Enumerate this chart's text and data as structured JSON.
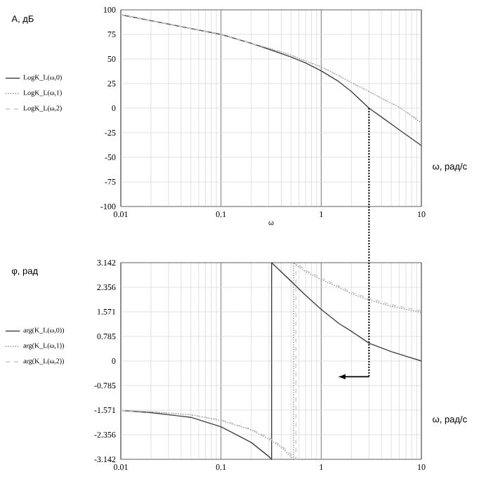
{
  "chart_data": [
    {
      "type": "line",
      "xlabel": "ω",
      "ylabel": "А, дБ",
      "annotations": [
        "ω, рад/с"
      ],
      "log": "x",
      "grid": true,
      "legend": "left",
      "marker": "none",
      "ref_lines": [
        {
          "axis": "x",
          "value": 3,
          "line_style": "dotted",
          "color": "#000000"
        }
      ],
      "xlim": [
        0.01,
        10
      ],
      "xticks": [
        0.01,
        0.1,
        1,
        10
      ],
      "ylim": [
        -100,
        100
      ],
      "yticks": [
        -100,
        -75,
        -50,
        -25,
        0,
        25,
        50,
        75,
        100
      ],
      "series": [
        {
          "name": "LogK_L(ω,0)",
          "color": "#404040",
          "line_style": "solid",
          "x": [
            0.01,
            0.02,
            0.05,
            0.1,
            0.2,
            0.3,
            0.5,
            0.7,
            1,
            1.5,
            2,
            3,
            4,
            6,
            10
          ],
          "values": [
            95,
            89,
            81,
            75,
            66,
            60,
            52,
            46,
            38,
            27,
            17,
            0,
            -9,
            -22,
            -38
          ]
        },
        {
          "name": "LogK_L(ω,1)",
          "color": "#8c8c8c",
          "line_style": "dotted",
          "x": [
            0.01,
            0.02,
            0.05,
            0.1,
            0.2,
            0.3,
            0.5,
            0.7,
            1,
            1.5,
            2,
            3,
            4,
            6,
            10
          ],
          "values": [
            95,
            89,
            81,
            75,
            66,
            61,
            54,
            48,
            42,
            33,
            26,
            17,
            10,
            1,
            -15
          ]
        },
        {
          "name": "LogK_L(ω,2)",
          "color": "#c8c8c8",
          "line_style": "dashed",
          "x": [
            0.01,
            0.02,
            0.05,
            0.1,
            0.2,
            0.3,
            0.5,
            0.7,
            1,
            1.5,
            2,
            3,
            4,
            6,
            10
          ],
          "values": [
            95,
            89,
            81,
            75,
            66,
            61,
            54,
            48,
            42,
            33,
            26,
            17,
            10,
            1,
            -14
          ]
        }
      ]
    },
    {
      "type": "line",
      "xlabel": "ω, рад/с",
      "ylabel": "φ, рад",
      "log": "x",
      "grid": true,
      "legend": "left",
      "marker": "none",
      "ref_lines": [
        {
          "axis": "x",
          "value": 3,
          "line_style": "dotted",
          "color": "#000000"
        }
      ],
      "xlim": [
        0.01,
        10
      ],
      "xticks": [
        0.01,
        0.1,
        1,
        10
      ],
      "ylim": [
        -3.142,
        3.142
      ],
      "yticks": [
        -3.142,
        -2.356,
        -1.571,
        -0.785,
        0,
        0.785,
        1.571,
        2.356,
        3.142
      ],
      "series": [
        {
          "name": "arg(K_L(ω,0))",
          "color": "#404040",
          "line_style": "solid",
          "x": [
            0.01,
            0.02,
            0.05,
            0.1,
            0.2,
            0.3,
            0.32,
            0.32,
            0.5,
            0.7,
            1,
            1.5,
            2,
            3,
            5,
            10
          ],
          "values": [
            -1.58,
            -1.65,
            -1.8,
            -2.1,
            -2.6,
            -3.05,
            -3.14,
            3.14,
            2.55,
            2.1,
            1.65,
            1.2,
            0.95,
            0.57,
            0.3,
            0
          ]
        },
        {
          "name": "arg(K_L(ω,1))",
          "color": "#8c8c8c",
          "line_style": "dotted",
          "x": [
            0.01,
            0.02,
            0.05,
            0.1,
            0.2,
            0.3,
            0.4,
            0.53,
            0.53,
            0.7,
            1,
            1.5,
            2,
            3,
            5,
            10
          ],
          "values": [
            -1.58,
            -1.62,
            -1.72,
            -1.9,
            -2.2,
            -2.5,
            -2.75,
            -3.14,
            3.14,
            2.85,
            2.6,
            2.35,
            2.15,
            1.95,
            1.75,
            1.55
          ]
        },
        {
          "name": "arg(K_L(ω,2))",
          "color": "#c8c8c8",
          "line_style": "dashed",
          "x": [
            0.01,
            0.02,
            0.05,
            0.1,
            0.2,
            0.3,
            0.4,
            0.56,
            0.56,
            0.7,
            1,
            1.5,
            2,
            3,
            5,
            10
          ],
          "values": [
            -1.58,
            -1.62,
            -1.72,
            -1.88,
            -2.18,
            -2.45,
            -2.7,
            -3.14,
            3.14,
            2.9,
            2.65,
            2.4,
            2.2,
            2.0,
            1.8,
            1.6
          ]
        }
      ]
    }
  ]
}
